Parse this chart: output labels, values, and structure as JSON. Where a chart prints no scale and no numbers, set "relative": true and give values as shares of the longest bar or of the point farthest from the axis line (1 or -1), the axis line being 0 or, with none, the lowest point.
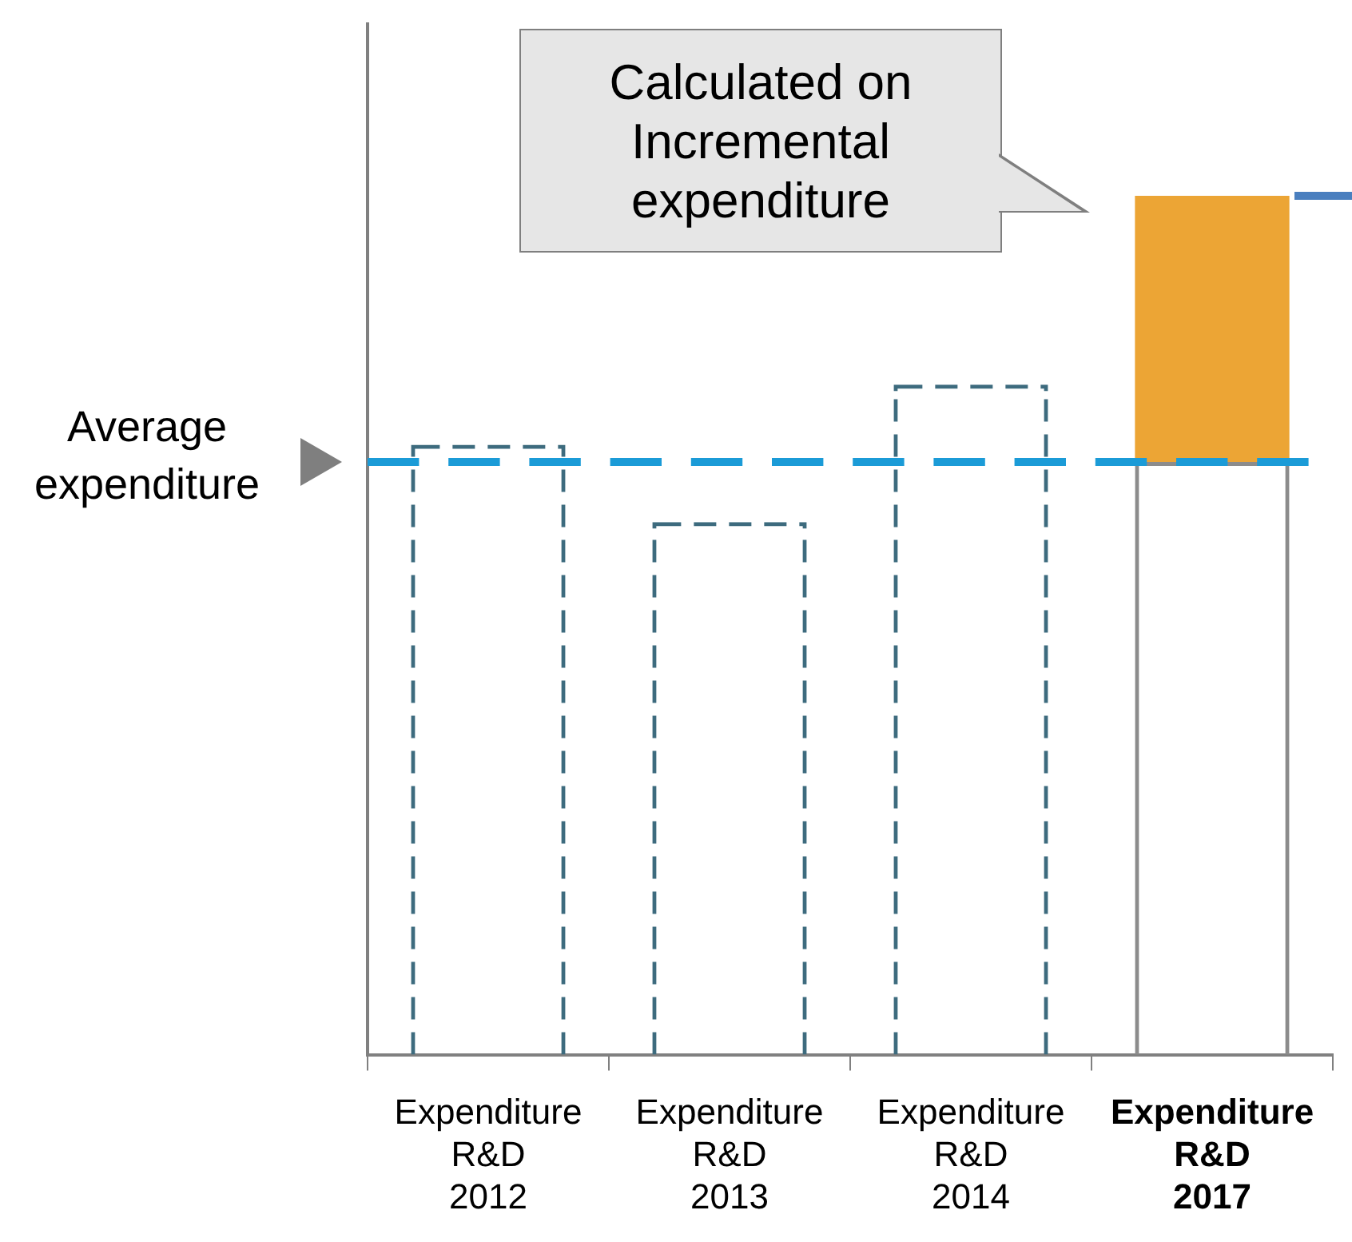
{
  "chart_data": {
    "type": "bar",
    "relative": true,
    "stacked": true,
    "legend": false,
    "grid": false,
    "categories": [
      "Expenditure R&D 2012",
      "Expenditure R&D 2013",
      "Expenditure R&D 2014",
      "Expenditure R&D 2017"
    ],
    "series": [
      {
        "color": "#3d6b7e",
        "line_style": "dashed",
        "values": [
          0.71,
          0.62,
          0.78,
          null
        ]
      },
      {
        "color": "#8c8c8c",
        "line_style": "solid",
        "values": [
          null,
          null,
          null,
          0.69
        ]
      },
      {
        "color": "#eca535",
        "values": [
          null,
          null,
          null,
          0.31
        ]
      }
    ],
    "ref_lines": [
      {
        "axis": "y",
        "value": 0.69,
        "label": "Average expenditure",
        "color": "#1b9bd7",
        "line_style": "dashed"
      }
    ],
    "annotations": [
      "Calculated on Incremental expenditure"
    ]
  }
}
